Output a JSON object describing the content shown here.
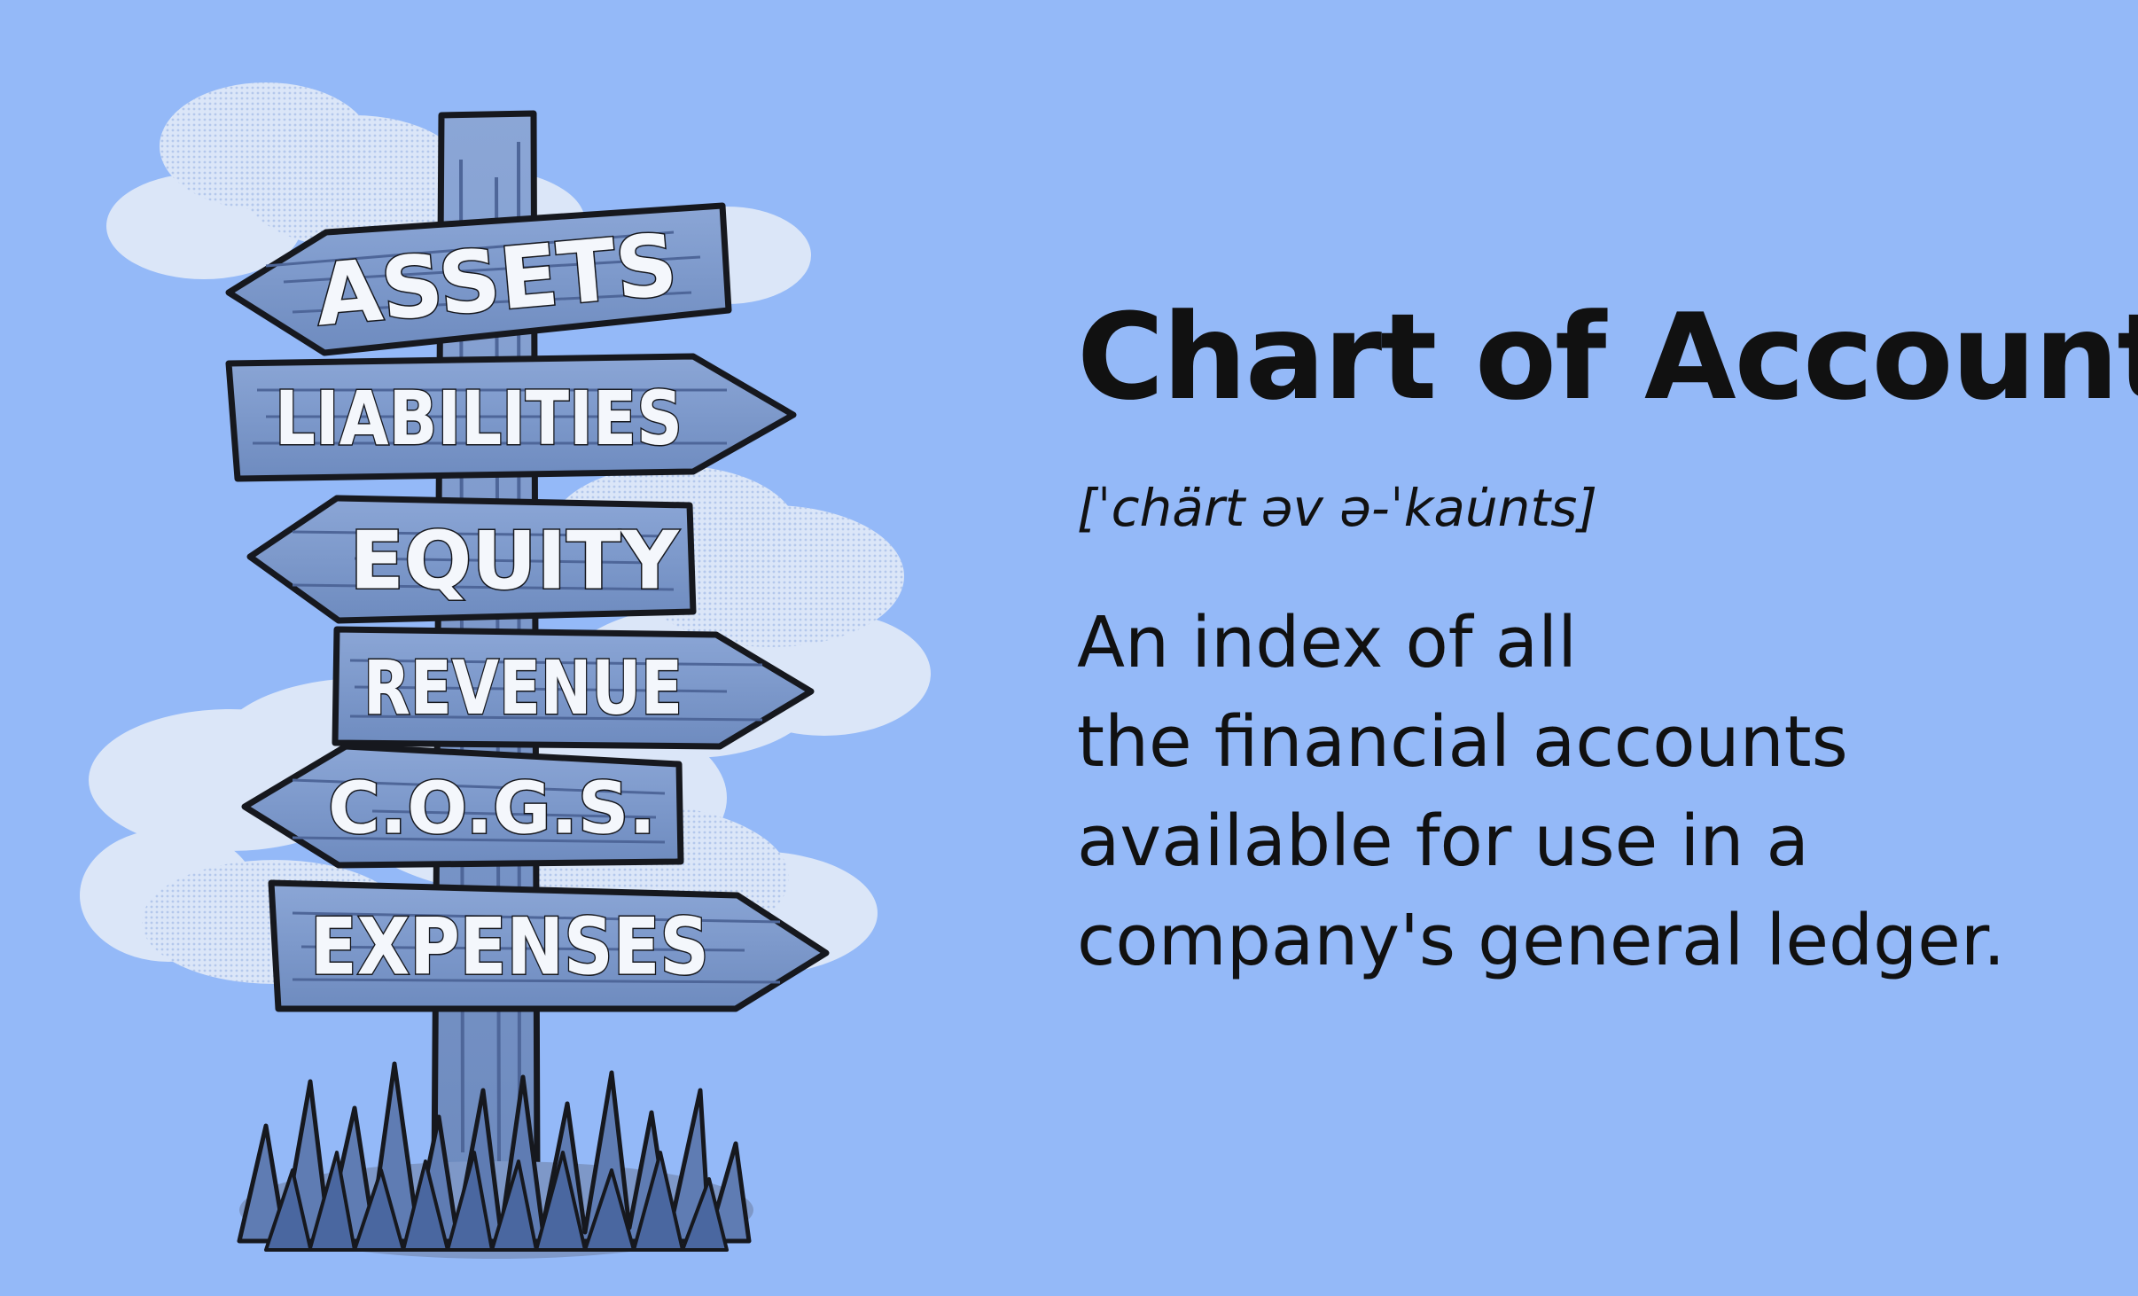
{
  "signpost": {
    "signs": [
      {
        "label": "ASSETS"
      },
      {
        "label": "LIABILITIES"
      },
      {
        "label": "EQUITY"
      },
      {
        "label": "REVENUE"
      },
      {
        "label": "C.O.G.S."
      },
      {
        "label": "EXPENSES"
      }
    ]
  },
  "definition": {
    "title": "Chart of Accounts",
    "pronunciation": "[ˈchärt əv ə-ˈkau̇nts]",
    "lines": [
      "An index of all",
      "the financial accounts",
      "available for use in a",
      "company's general ledger."
    ]
  },
  "colors": {
    "background": "#94b9f8",
    "sign_wood": "#7b97c8",
    "outline": "#16181e",
    "cloud": "#dde7f8"
  }
}
